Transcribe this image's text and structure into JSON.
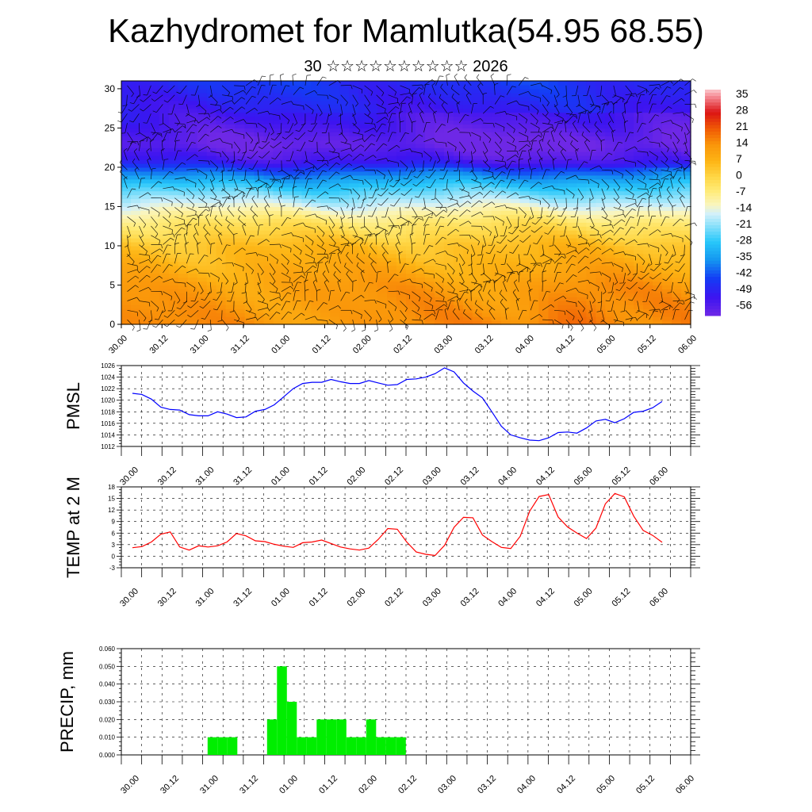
{
  "title": "Kazhydromet for Mamlutka(54.95 68.55)",
  "subtitle": "30 ☆☆☆☆☆☆☆☆☆☆ 2026",
  "colors": {
    "pmsl": "#0000ff",
    "temp": "#ff0000",
    "precip": "#00ee00"
  },
  "chart_data": [
    {
      "type": "heatmap",
      "description_kind": "temperature cross-section with wind barbs",
      "x_tick_labels": [
        "30.00",
        "30.12",
        "31.00",
        "31.12",
        "01.00",
        "01.12",
        "02.00",
        "02.12",
        "03.00",
        "03.12",
        "04.00",
        "04.12",
        "05.00",
        "05.12",
        "06.00"
      ],
      "y_ticks": [
        0,
        5,
        10,
        15,
        20,
        25,
        30
      ],
      "ylim": [
        0,
        31
      ],
      "colorbar_labels": [
        "35",
        "28",
        "21",
        "14",
        "7",
        "0",
        "-7",
        "-14",
        "-21",
        "-28",
        "-35",
        "-42",
        "-49",
        "-56"
      ],
      "color_range": [
        -60,
        38
      ],
      "temperature_profile": [
        {
          "level": 0,
          "value": 14
        },
        {
          "level": 5,
          "value": 12
        },
        {
          "level": 10,
          "value": 5
        },
        {
          "level": 13,
          "value": -4
        },
        {
          "level": 15,
          "value": -14
        },
        {
          "level": 18,
          "value": -30
        },
        {
          "level": 21,
          "value": -52
        },
        {
          "level": 23,
          "value": -58
        },
        {
          "level": 26,
          "value": -52
        },
        {
          "level": 31,
          "value": -46
        }
      ]
    },
    {
      "type": "line",
      "ylabel": "PMSL",
      "ylim": [
        1012,
        1026
      ],
      "y_ticks": [
        1012,
        1014,
        1016,
        1018,
        1020,
        1022,
        1024,
        1026
      ],
      "x_tick_labels": [
        "30.00",
        "30.12",
        "31.00",
        "31.12",
        "01.00",
        "01.12",
        "02.00",
        "02.12",
        "03.00",
        "03.12",
        "04.00",
        "04.12",
        "05.00",
        "05.12",
        "06.00"
      ],
      "step_hours": 3,
      "series": [
        {
          "values": [
            1021.2,
            1021.0,
            1020.2,
            1018.8,
            1018.4,
            1018.3,
            1017.5,
            1017.3,
            1017.3,
            1018.0,
            1017.6,
            1017.0,
            1017.1,
            1018.1,
            1018.4,
            1019.2,
            1020.6,
            1022.0,
            1022.9,
            1023.1,
            1023.1,
            1023.6,
            1023.2,
            1022.9,
            1022.9,
            1023.4,
            1023.0,
            1022.6,
            1022.7,
            1023.6,
            1023.7,
            1024.0,
            1024.6,
            1025.6,
            1024.9,
            1023.0,
            1021.6,
            1020.4,
            1018.0,
            1015.5,
            1014.0,
            1013.5,
            1013.1,
            1013.0,
            1013.5,
            1014.4,
            1014.5,
            1014.3,
            1015.2,
            1016.4,
            1016.7,
            1016.1,
            1016.8,
            1017.9,
            1018.1,
            1018.7,
            1019.8
          ]
        }
      ]
    },
    {
      "type": "line",
      "ylabel": "TEMP at 2 M",
      "ylim": [
        -3,
        18
      ],
      "y_ticks": [
        -3,
        0,
        3,
        6,
        9,
        12,
        15,
        18
      ],
      "x_tick_labels": [
        "30.00",
        "30.12",
        "31.00",
        "31.12",
        "01.00",
        "01.12",
        "02.00",
        "02.12",
        "03.00",
        "03.12",
        "04.00",
        "04.12",
        "05.00",
        "05.12",
        "06.00"
      ],
      "step_hours": 3,
      "series": [
        {
          "values": [
            2.2,
            2.5,
            3.7,
            5.7,
            6.3,
            2.4,
            1.6,
            2.7,
            2.4,
            2.7,
            3.7,
            5.9,
            5.3,
            4.0,
            3.8,
            3.1,
            2.6,
            2.3,
            3.5,
            3.7,
            4.2,
            3.3,
            2.4,
            1.9,
            1.6,
            2.1,
            4.4,
            7.2,
            7.0,
            3.7,
            1.1,
            0.5,
            0.2,
            2.8,
            7.5,
            10.1,
            10.0,
            5.5,
            3.8,
            2.3,
            2.0,
            5.2,
            11.7,
            15.5,
            16.0,
            10.2,
            7.6,
            6.0,
            4.6,
            7.3,
            13.6,
            16.3,
            15.4,
            10.4,
            6.7,
            5.4,
            3.6
          ]
        }
      ]
    },
    {
      "type": "bar",
      "ylabel": "PRECIP, mm",
      "ylim": [
        0,
        0.06
      ],
      "y_tick_labels": [
        "0.000",
        "0.010",
        "0.020",
        "0.030",
        "0.040",
        "0.050",
        "0.060"
      ],
      "x_tick_labels": [
        "30.00",
        "30.12",
        "31.00",
        "31.12",
        "01.00",
        "01.12",
        "02.00",
        "02.12",
        "03.00",
        "03.12",
        "04.00",
        "04.12",
        "05.00",
        "05.12",
        "06.00"
      ],
      "step_hours": 3,
      "values": [
        0,
        0,
        0,
        0,
        0,
        0,
        0,
        0,
        0.01,
        0.01,
        0.01,
        0,
        0,
        0,
        0.02,
        0.05,
        0.03,
        0.01,
        0.01,
        0.02,
        0.02,
        0.02,
        0.01,
        0.01,
        0.02,
        0.01,
        0.01,
        0.01,
        0,
        0,
        0,
        0,
        0,
        0,
        0,
        0,
        0,
        0,
        0,
        0,
        0,
        0,
        0,
        0,
        0,
        0,
        0,
        0,
        0,
        0,
        0,
        0,
        0,
        0,
        0,
        0,
        0
      ]
    }
  ]
}
